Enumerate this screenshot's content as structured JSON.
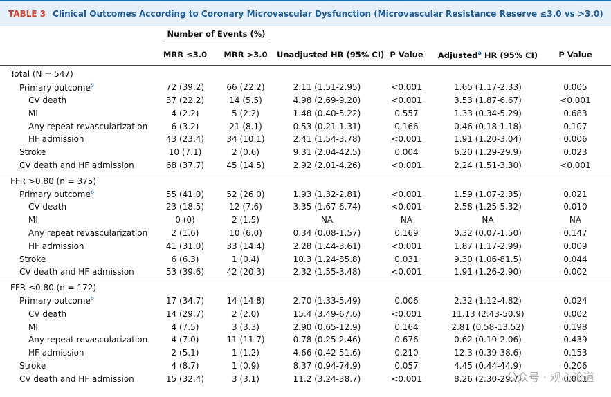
{
  "header": {
    "label": "TABLE 3",
    "title": "Clinical Outcomes According to Coronary Microvascular Dysfunction (Microvascular Resistance Reserve ≤3.0 vs >3.0)"
  },
  "columns": {
    "group": "Number of Events (%)",
    "items": [
      {
        "text": "MRR ≤3.0"
      },
      {
        "text": "MRR >3.0"
      },
      {
        "text": "Unadjusted HR (95% CI)"
      },
      {
        "text": "P Value"
      },
      {
        "text": "Adjusted",
        "sup": "a",
        "rest": " HR (95% CI)"
      },
      {
        "text": "P Value"
      }
    ]
  },
  "sections": [
    {
      "title": "Total (N = 547)",
      "rows": [
        {
          "label": "Primary outcome",
          "sup": "b",
          "cells": [
            "72 (39.2)",
            "66 (22.2)",
            "2.11 (1.51-2.95)",
            "<0.001",
            "1.65 (1.17-2.33)",
            "0.005"
          ],
          "children": [
            {
              "label": "CV death",
              "cells": [
                "37 (22.2)",
                "14 (5.5)",
                "4.98 (2.69-9.20)",
                "<0.001",
                "3.53 (1.87-6.67)",
                "<0.001"
              ]
            },
            {
              "label": "MI",
              "cells": [
                "4 (2.2)",
                "5 (2.2)",
                "1.48 (0.40-5.22)",
                "0.557",
                "1.33 (0.34-5.29)",
                "0.683"
              ]
            },
            {
              "label": "Any repeat revascularization",
              "cells": [
                "6 (3.2)",
                "21 (8.1)",
                "0.53 (0.21-1.31)",
                "0.166",
                "0.46 (0.18-1.18)",
                "0.107"
              ]
            },
            {
              "label": "HF admission",
              "cells": [
                "43 (23.4)",
                "34 (10.1)",
                "2.41 (1.54-3.78)",
                "<0.001",
                "1.91 (1.20-3.04)",
                "0.006"
              ]
            }
          ]
        },
        {
          "label": "Stroke",
          "cells": [
            "10 (7.1)",
            "2 (0.6)",
            "9.31 (2.04-42.5)",
            "0.004",
            "6.20 (1.29-29.9)",
            "0.023"
          ]
        },
        {
          "label": "CV death and HF admission",
          "cells": [
            "68 (37.7)",
            "45 (14.5)",
            "2.92 (2.01-4.26)",
            "<0.001",
            "2.24 (1.51-3.30)",
            "<0.001"
          ]
        }
      ]
    },
    {
      "title": "FFR >0.80 (n = 375)",
      "rows": [
        {
          "label": "Primary outcome",
          "sup": "b",
          "cells": [
            "55 (41.0)",
            "52 (26.0)",
            "1.93 (1.32-2.81)",
            "<0.001",
            "1.59 (1.07-2.35)",
            "0.021"
          ],
          "children": [
            {
              "label": "CV death",
              "cells": [
                "23 (18.5)",
                "12 (7.6)",
                "3.35 (1.67-6.74)",
                "<0.001",
                "2.58 (1.25-5.32)",
                "0.010"
              ]
            },
            {
              "label": "MI",
              "cells": [
                "0 (0)",
                "2 (1.5)",
                "NA",
                "NA",
                "NA",
                "NA"
              ]
            },
            {
              "label": "Any repeat revascularization",
              "cells": [
                "2 (1.6)",
                "10 (6.0)",
                "0.34 (0.08-1.57)",
                "0.169",
                "0.32 (0.07-1.50)",
                "0.147"
              ]
            },
            {
              "label": "HF admission",
              "cells": [
                "41 (31.0)",
                "33 (14.4)",
                "2.28 (1.44-3.61)",
                "<0.001",
                "1.87 (1.17-2.99)",
                "0.009"
              ]
            }
          ]
        },
        {
          "label": "Stroke",
          "cells": [
            "6 (6.3)",
            "1 (0.4)",
            "10.3 (1.24-85.8)",
            "0.031",
            "9.30 (1.06-81.5)",
            "0.044"
          ]
        },
        {
          "label": "CV death and HF admission",
          "cells": [
            "53 (39.6)",
            "42 (20.3)",
            "2.32 (1.55-3.48)",
            "<0.001",
            "1.91 (1.26-2.90)",
            "0.002"
          ]
        }
      ]
    },
    {
      "title": "FFR ≤0.80 (n = 172)",
      "rows": [
        {
          "label": "Primary outcome",
          "sup": "b",
          "cells": [
            "17 (34.7)",
            "14 (14.8)",
            "2.70 (1.33-5.49)",
            "0.006",
            "2.32 (1.12-4.82)",
            "0.024"
          ],
          "children": [
            {
              "label": "CV death",
              "cells": [
                "14 (29.7)",
                "2 (2.0)",
                "15.4 (3.49-67.6)",
                "<0.001",
                "11.13 (2.43-50.9)",
                "0.002"
              ]
            },
            {
              "label": "MI",
              "cells": [
                "4 (7.5)",
                "3 (3.3)",
                "2.90 (0.65-12.9)",
                "0.164",
                "2.81 (0.58-13.52)",
                "0.198"
              ]
            },
            {
              "label": "Any repeat revascularization",
              "cells": [
                "4 (7.0)",
                "11 (11.7)",
                "0.78 (0.25-2.46)",
                "0.676",
                "0.62 (0.19-2.06)",
                "0.439"
              ]
            },
            {
              "label": "HF admission",
              "cells": [
                "2 (5.1)",
                "1 (1.2)",
                "4.66 (0.42-51.6)",
                "0.210",
                "12.3 (0.39-38.6)",
                "0.153"
              ]
            }
          ]
        },
        {
          "label": "Stroke",
          "cells": [
            "4 (8.7)",
            "1 (0.9)",
            "8.37 (0.94-74.9)",
            "0.057",
            "4.45 (0.44-44.9)",
            "0.206"
          ]
        },
        {
          "label": "CV death and HF admission",
          "cells": [
            "15 (32.4)",
            "3 (3.1)",
            "11.2 (3.24-38.7)",
            "<0.001",
            "8.26 (2.30-29.7)",
            "0.001"
          ]
        }
      ]
    }
  ],
  "watermark": "公众号 · 观心论道"
}
